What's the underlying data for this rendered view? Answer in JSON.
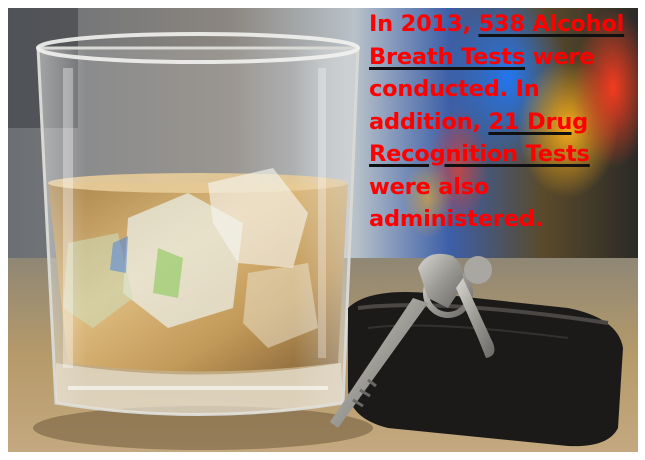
{
  "image": {
    "subject": "whiskey glass with ice beside car keys",
    "colors": {
      "caption_text": "#ff0000",
      "underline": "#101010",
      "whiskey": "#c99a4a",
      "key_metal": "#9c9a95",
      "fob": "#1c1a19",
      "table": "#b89a6a"
    }
  },
  "caption": {
    "line1_a": "In 2013, ",
    "line1_b": "538 Alcohol",
    "line2_a": "Breath Tests",
    "line2_b": " were",
    "line3": "conducted. In",
    "line4_a": "addition, ",
    "line4_b": "21 Drug",
    "line5": "Recognition Tests",
    "line6": "were also",
    "line7": "administered."
  }
}
